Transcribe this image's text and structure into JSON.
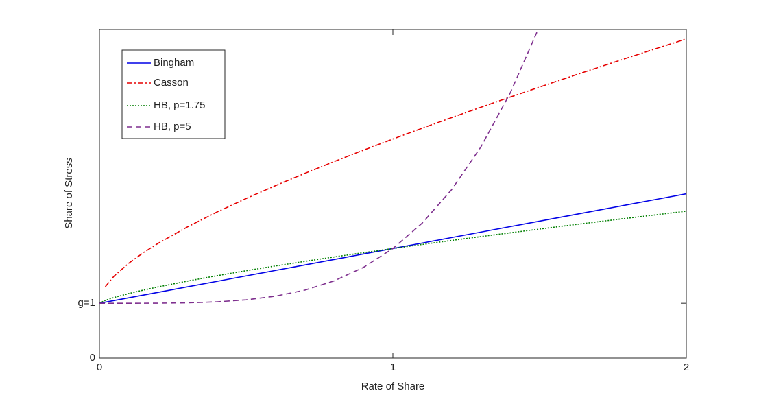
{
  "chart_data": {
    "type": "line",
    "xlabel": "Rate of Share",
    "ylabel": "Share of Stress",
    "x": [
      0,
      0.02,
      0.05,
      0.1,
      0.15,
      0.2,
      0.3,
      0.4,
      0.5,
      0.6,
      0.7,
      0.8,
      0.9,
      1.0,
      1.1,
      1.2,
      1.3,
      1.4,
      1.5,
      1.6,
      1.7,
      1.8,
      1.9,
      2.0
    ],
    "series": [
      {
        "name": "Bingham",
        "color": "#0000e6",
        "dash": "solid",
        "values": [
          1,
          1.02,
          1.05,
          1.1,
          1.15,
          1.2,
          1.3,
          1.4,
          1.5,
          1.6,
          1.7,
          1.8,
          1.9,
          2.0,
          2.1,
          2.2,
          2.3,
          2.4,
          2.5,
          2.6,
          2.7,
          2.8,
          2.9,
          3.0
        ]
      },
      {
        "name": "Casson",
        "color": "#e60000",
        "dash": "dashdot",
        "values": [
          null,
          1.303,
          1.497,
          1.732,
          1.925,
          2.094,
          2.395,
          2.665,
          2.914,
          3.149,
          3.373,
          3.589,
          3.797,
          4.0,
          4.198,
          4.391,
          4.58,
          4.766,
          4.949,
          5.13,
          5.308,
          5.483,
          5.657,
          5.828
        ]
      },
      {
        "name": "HB, p=1.75",
        "color": "#007f00",
        "dash": "dotted",
        "values": [
          1,
          1.053,
          1.106,
          1.178,
          1.241,
          1.299,
          1.405,
          1.503,
          1.595,
          1.682,
          1.765,
          1.846,
          1.924,
          2.0,
          2.074,
          2.147,
          2.218,
          2.287,
          2.355,
          2.423,
          2.489,
          2.554,
          2.618,
          2.682
        ]
      },
      {
        "name": "HB, p=5",
        "color": "#7e2f8e",
        "dash": "dashed",
        "values": [
          1,
          1.0,
          1.0,
          1.0001,
          1.0005,
          1.0016,
          1.0081,
          1.0256,
          1.0625,
          1.1296,
          1.2401,
          1.4096,
          1.6561,
          2.0,
          2.4641,
          3.0736,
          3.8561,
          4.8416,
          6.0625,
          null,
          null,
          null,
          null,
          null
        ]
      }
    ],
    "xlim": [
      0,
      2
    ],
    "xticks": [
      0,
      1,
      2
    ],
    "ylim": [
      0,
      6
    ],
    "yticks": [
      0,
      {
        "value": 1,
        "label": "g=1"
      }
    ],
    "grid": false,
    "legend": "upper left"
  }
}
